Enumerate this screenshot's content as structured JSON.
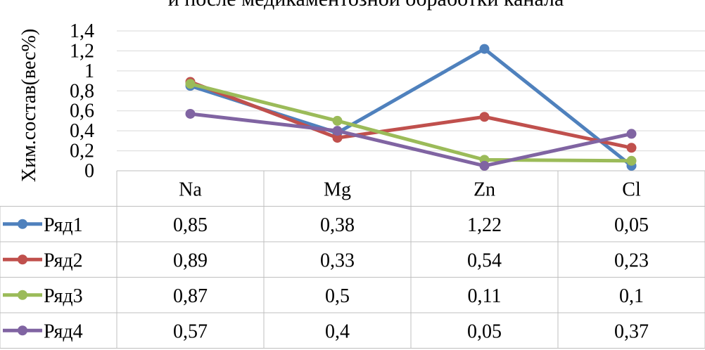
{
  "chart_data": {
    "type": "line",
    "title": "и после медикаментозной обработки канала",
    "ylabel": "Хим.состав(вес%)",
    "xlabel": "",
    "categories": [
      "Na",
      "Mg",
      "Zn",
      "Cl"
    ],
    "ylim": [
      0,
      1.4
    ],
    "yticks": [
      "0",
      "0,2",
      "0,4",
      "0,6",
      "0,8",
      "1",
      "1,2",
      "1,4"
    ],
    "grid": true,
    "legend": "data-table",
    "series": [
      {
        "name": "Ряд1",
        "color": "#4f81bd",
        "values": [
          0.85,
          0.38,
          1.22,
          0.05
        ],
        "labels": [
          "0,85",
          "0,38",
          "1,22",
          "0,05"
        ]
      },
      {
        "name": "Ряд2",
        "color": "#c0504d",
        "values": [
          0.89,
          0.33,
          0.54,
          0.23
        ],
        "labels": [
          "0,89",
          "0,33",
          "0,54",
          "0,23"
        ]
      },
      {
        "name": "Ряд3",
        "color": "#9bbb59",
        "values": [
          0.87,
          0.5,
          0.11,
          0.1
        ],
        "labels": [
          "0,87",
          "0,5",
          "0,11",
          "0,1"
        ]
      },
      {
        "name": "Ряд4",
        "color": "#8064a2",
        "values": [
          0.57,
          0.4,
          0.05,
          0.37
        ],
        "labels": [
          "0,57",
          "0,4",
          "0,05",
          "0,37"
        ]
      }
    ]
  }
}
